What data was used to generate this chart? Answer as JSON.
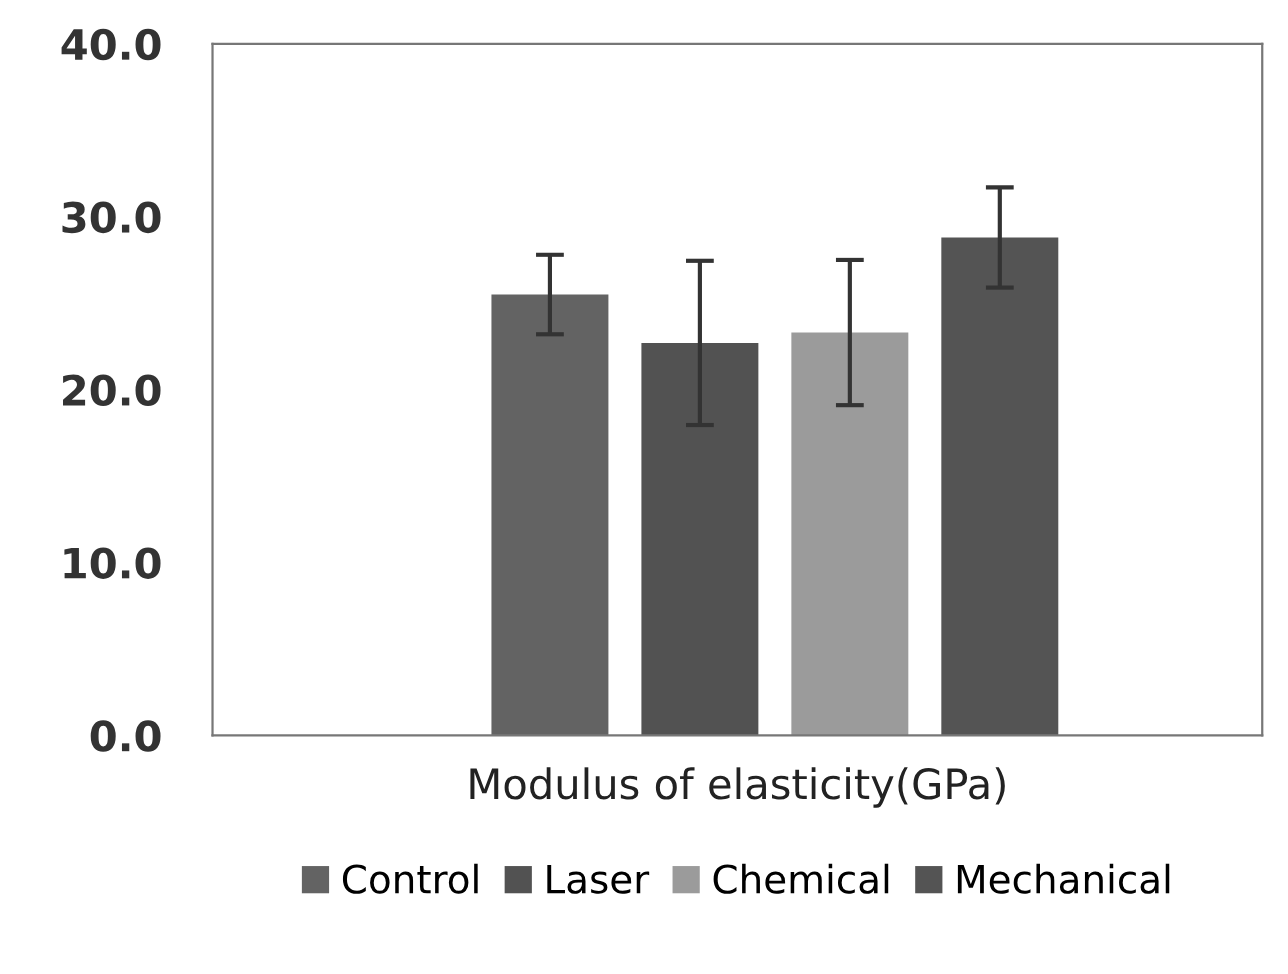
{
  "chart_data": {
    "type": "bar",
    "xlabel": "Modulus of elasticity(GPa)",
    "categories": [
      null
    ],
    "series": [
      {
        "name": "Control",
        "color": "#636363",
        "values": [
          25.5
        ],
        "errors": [
          2.3
        ]
      },
      {
        "name": "Laser",
        "color": "#525252",
        "values": [
          22.7
        ],
        "errors": [
          4.75
        ]
      },
      {
        "name": "Chemical",
        "color": "#9b9b9b",
        "values": [
          23.3
        ],
        "errors": [
          4.2
        ]
      },
      {
        "name": "Mechanical",
        "color": "#545454",
        "values": [
          28.8
        ],
        "errors": [
          2.9
        ]
      }
    ],
    "ylim": [
      0,
      40
    ],
    "yticks": [
      {
        "value": 0,
        "label": "0.0"
      },
      {
        "value": 10,
        "label": "10.0"
      },
      {
        "value": 20,
        "label": "20.0"
      },
      {
        "value": 30,
        "label": "30.0"
      },
      {
        "value": 40,
        "label": "40.0"
      }
    ],
    "grid": false,
    "legend": "bottom"
  }
}
